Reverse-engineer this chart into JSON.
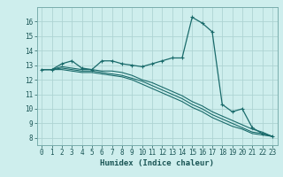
{
  "xlabel": "Humidex (Indice chaleur)",
  "x_ticks": [
    0,
    1,
    2,
    3,
    4,
    5,
    6,
    7,
    8,
    9,
    10,
    11,
    12,
    13,
    14,
    15,
    16,
    17,
    18,
    19,
    20,
    21,
    22,
    23
  ],
  "xlim": [
    -0.5,
    23.5
  ],
  "ylim": [
    7.5,
    17.0
  ],
  "y_ticks": [
    8,
    9,
    10,
    11,
    12,
    13,
    14,
    15,
    16
  ],
  "bg_color": "#ceeeed",
  "grid_color": "#aed4d3",
  "line_color": "#1a6b6b",
  "line1_x": [
    0,
    1,
    2,
    3,
    4,
    5,
    6,
    7,
    8,
    9,
    10,
    11,
    12,
    13,
    14,
    15,
    16,
    17,
    18,
    19,
    20,
    21,
    22,
    23
  ],
  "line1_y": [
    12.7,
    12.7,
    13.1,
    13.3,
    12.8,
    12.7,
    13.3,
    13.3,
    13.1,
    13.0,
    12.9,
    13.1,
    13.3,
    13.5,
    13.5,
    16.3,
    15.9,
    15.3,
    10.3,
    9.8,
    10.0,
    8.7,
    8.3,
    8.1
  ],
  "line2_x": [
    0,
    1,
    2,
    3,
    4,
    5,
    6,
    7,
    8,
    9,
    10,
    11,
    12,
    13,
    14,
    15,
    16,
    17,
    18,
    19,
    20,
    21,
    22,
    23
  ],
  "line2_y": [
    12.7,
    12.7,
    12.9,
    12.8,
    12.7,
    12.7,
    12.6,
    12.6,
    12.5,
    12.3,
    12.0,
    11.8,
    11.5,
    11.2,
    10.9,
    10.5,
    10.2,
    9.8,
    9.5,
    9.2,
    8.9,
    8.6,
    8.4,
    8.1
  ],
  "line3_x": [
    0,
    1,
    2,
    3,
    4,
    5,
    6,
    7,
    8,
    9,
    10,
    11,
    12,
    13,
    14,
    15,
    16,
    17,
    18,
    19,
    20,
    21,
    22,
    23
  ],
  "line3_y": [
    12.7,
    12.7,
    12.8,
    12.7,
    12.6,
    12.6,
    12.5,
    12.4,
    12.3,
    12.1,
    11.9,
    11.6,
    11.3,
    11.0,
    10.7,
    10.3,
    10.0,
    9.6,
    9.3,
    9.0,
    8.7,
    8.4,
    8.3,
    8.1
  ],
  "line4_x": [
    0,
    1,
    2,
    3,
    4,
    5,
    6,
    7,
    8,
    9,
    10,
    11,
    12,
    13,
    14,
    15,
    16,
    17,
    18,
    19,
    20,
    21,
    22,
    23
  ],
  "line4_y": [
    12.7,
    12.7,
    12.7,
    12.6,
    12.5,
    12.5,
    12.4,
    12.3,
    12.2,
    12.0,
    11.7,
    11.4,
    11.1,
    10.8,
    10.5,
    10.1,
    9.8,
    9.4,
    9.1,
    8.8,
    8.6,
    8.3,
    8.2,
    8.1
  ],
  "tick_fontsize": 5.5,
  "xlabel_fontsize": 6.5
}
